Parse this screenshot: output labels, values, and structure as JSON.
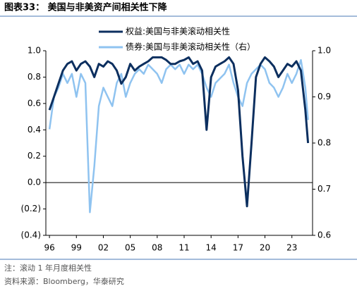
{
  "chart_data": {
    "type": "line",
    "title": "图表33：  美国与非美资产间相关性下降",
    "note": "注：滚动 1 年月度相关性",
    "source": "资料来源：Bloomberg，华泰研究",
    "x": [
      1996,
      1996.5,
      1997,
      1997.5,
      1998,
      1998.5,
      1999,
      1999.5,
      2000,
      2000.5,
      2001,
      2001.5,
      2002,
      2002.5,
      2003,
      2003.5,
      2004,
      2004.5,
      2005,
      2005.5,
      2006,
      2006.5,
      2007,
      2007.5,
      2008,
      2008.5,
      2009,
      2009.5,
      2010,
      2010.5,
      2011,
      2011.5,
      2012,
      2012.5,
      2013,
      2013.5,
      2014,
      2014.5,
      2015,
      2015.5,
      2016,
      2016.5,
      2017,
      2017.5,
      2018,
      2018.5,
      2019,
      2019.5,
      2020,
      2020.5,
      2021,
      2021.5,
      2022,
      2022.5,
      2023,
      2023.5,
      2024,
      2024.5,
      2024.8
    ],
    "series": [
      {
        "name": "权益:美国与非美滚动相关性",
        "color": "#0c2f5f",
        "axis": "y",
        "values": [
          0.55,
          0.65,
          0.75,
          0.85,
          0.9,
          0.92,
          0.85,
          0.9,
          0.92,
          0.88,
          0.8,
          0.9,
          0.88,
          0.92,
          0.9,
          0.85,
          0.75,
          0.8,
          0.9,
          0.85,
          0.88,
          0.9,
          0.92,
          0.95,
          0.95,
          0.95,
          0.93,
          0.9,
          0.9,
          0.92,
          0.93,
          0.95,
          0.9,
          0.92,
          0.85,
          0.4,
          0.8,
          0.88,
          0.9,
          0.92,
          0.95,
          0.9,
          0.7,
          0.2,
          -0.18,
          0.3,
          0.8,
          0.9,
          0.95,
          0.92,
          0.88,
          0.8,
          0.85,
          0.9,
          0.88,
          0.92,
          0.85,
          0.55,
          0.3
        ]
      },
      {
        "name": "债券:美国与非美滚动相关性（右）",
        "color": "#8fc3f0",
        "axis": "y2",
        "values": [
          0.83,
          0.9,
          0.92,
          0.95,
          0.93,
          0.95,
          0.9,
          0.95,
          0.93,
          0.65,
          0.75,
          0.88,
          0.92,
          0.9,
          0.88,
          0.93,
          0.95,
          0.9,
          0.93,
          0.95,
          0.96,
          0.95,
          0.97,
          0.96,
          0.95,
          0.93,
          0.96,
          0.97,
          0.96,
          0.97,
          0.95,
          0.97,
          0.96,
          0.97,
          0.95,
          0.92,
          0.9,
          0.93,
          0.94,
          0.95,
          0.97,
          0.93,
          0.9,
          0.88,
          0.93,
          0.95,
          0.96,
          0.97,
          0.96,
          0.93,
          0.92,
          0.9,
          0.92,
          0.95,
          0.93,
          0.95,
          0.98,
          0.92,
          0.85
        ]
      }
    ],
    "xlim": [
      1995.6,
      2025.3
    ],
    "xticks": [
      {
        "value": 1996,
        "label": "96"
      },
      {
        "value": 1999,
        "label": "99"
      },
      {
        "value": 2002,
        "label": "02"
      },
      {
        "value": 2005,
        "label": "05"
      },
      {
        "value": 2008,
        "label": "08"
      },
      {
        "value": 2011,
        "label": "11"
      },
      {
        "value": 2014,
        "label": "14"
      },
      {
        "value": 2017,
        "label": "17"
      },
      {
        "value": 2020,
        "label": "20"
      },
      {
        "value": 2023,
        "label": "23"
      }
    ],
    "ylim": [
      -0.4,
      1.0
    ],
    "yticks": [
      {
        "value": -0.4,
        "label": "(0.4)"
      },
      {
        "value": -0.2,
        "label": "(0.2)"
      },
      {
        "value": 0,
        "label": "0.0"
      },
      0.2,
      0.4,
      0.6,
      0.8,
      {
        "value": 1,
        "label": "1.0"
      }
    ],
    "y2lim": [
      0.6,
      1.0
    ],
    "y2ticks": [
      0.6,
      0.7,
      0.8,
      0.9,
      {
        "value": 1,
        "label": "1.0"
      }
    ],
    "grid": false
  }
}
